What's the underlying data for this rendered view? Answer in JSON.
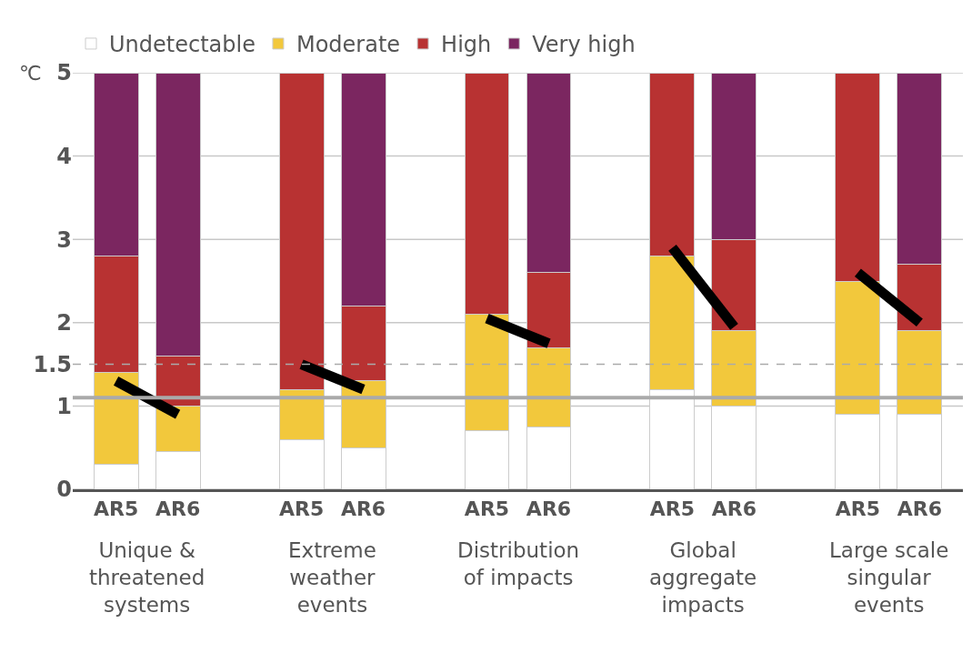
{
  "chart_data": {
    "type": "bar",
    "stacked": true,
    "categories": [
      "AR5",
      "AR6",
      null,
      "AR5",
      "AR6",
      null,
      "AR5",
      "AR6",
      null,
      "AR5",
      "AR6",
      null,
      "AR5",
      "AR6"
    ],
    "ylabel": "℃",
    "ylim": [
      0,
      5
    ],
    "yticks": [
      0,
      1,
      1.5,
      2,
      3,
      4,
      5
    ],
    "grid": "y",
    "legend": "top",
    "series": [
      {
        "name": "Undetectable",
        "color": "#ffffff",
        "values": [
          0.3,
          0.45,
          null,
          0.6,
          0.5,
          null,
          0.7,
          0.75,
          null,
          1.2,
          1.0,
          null,
          0.9,
          0.9
        ]
      },
      {
        "name": "Moderate",
        "color": "#f2c83c",
        "values": [
          1.1,
          0.55,
          null,
          0.6,
          0.8,
          null,
          1.4,
          0.95,
          null,
          1.6,
          0.9,
          null,
          1.6,
          1.0
        ]
      },
      {
        "name": "High",
        "color": "#b83232",
        "values": [
          1.4,
          0.6,
          null,
          3.8,
          0.9,
          null,
          2.9,
          0.9,
          null,
          2.2,
          1.1,
          null,
          2.5,
          0.8
        ]
      },
      {
        "name": "Very high",
        "color": "#7b2660",
        "values": [
          2.2,
          3.4,
          null,
          null,
          2.8,
          null,
          null,
          2.4,
          null,
          null,
          2.0,
          null,
          null,
          2.3
        ]
      },
      {
        "type": "line",
        "color": "#000000",
        "values": [
          1.3,
          0.9,
          null,
          null,
          null,
          null,
          null,
          null,
          null,
          null,
          null,
          null,
          null,
          null
        ]
      },
      {
        "type": "line",
        "color": "#000000",
        "values": [
          null,
          null,
          null,
          1.5,
          1.2,
          null,
          null,
          null,
          null,
          null,
          null,
          null,
          null,
          null
        ]
      },
      {
        "type": "line",
        "color": "#000000",
        "values": [
          null,
          null,
          null,
          null,
          null,
          null,
          2.05,
          1.75,
          null,
          null,
          null,
          null,
          null,
          null
        ]
      },
      {
        "type": "line",
        "color": "#000000",
        "values": [
          null,
          null,
          null,
          null,
          null,
          null,
          null,
          null,
          null,
          2.9,
          1.95,
          null,
          null,
          null
        ]
      },
      {
        "type": "line",
        "color": "#000000",
        "values": [
          null,
          null,
          null,
          null,
          null,
          null,
          null,
          null,
          null,
          null,
          null,
          null,
          2.6,
          2.0
        ]
      }
    ],
    "ref_lines": [
      {
        "axis": "y",
        "value": 1.5,
        "line_style": "dashed",
        "color": "#aaaaaa"
      },
      {
        "axis": "y",
        "value": 1.1,
        "line_style": "solid",
        "color": "#aaaaaa"
      }
    ],
    "annotations": [
      "Unique &\nthreatened\nsystems",
      "Extreme\nweather\nevents",
      "Distribution\nof impacts",
      "Global\naggregate\nimpacts",
      "Large scale\nsingular\nevents"
    ]
  }
}
